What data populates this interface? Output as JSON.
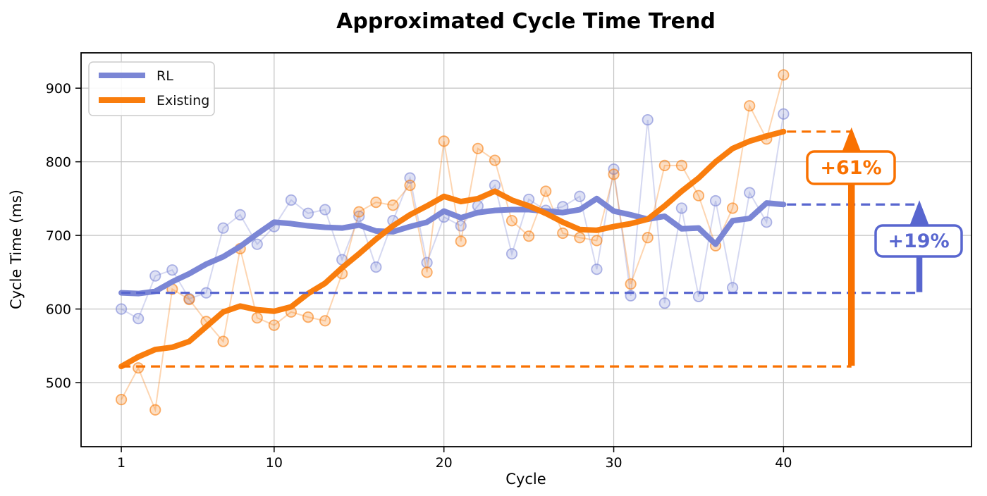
{
  "chart_data": {
    "type": "line",
    "title": "Approximated Cycle Time Trend",
    "xlabel": "Cycle",
    "ylabel": "Cycle Time (ms)",
    "x_ticks": [
      1,
      10,
      20,
      30,
      40
    ],
    "y_ticks": [
      500,
      600,
      700,
      800,
      900
    ],
    "xlim": [
      -1.37,
      51.07
    ],
    "ylim": [
      413,
      948
    ],
    "grid": true,
    "legend_position": "upper left",
    "x": [
      1,
      2,
      3,
      4,
      5,
      6,
      7,
      8,
      9,
      10,
      11,
      12,
      13,
      14,
      15,
      16,
      17,
      18,
      19,
      20,
      21,
      22,
      23,
      24,
      25,
      26,
      27,
      28,
      29,
      30,
      31,
      32,
      33,
      34,
      35,
      36,
      37,
      38,
      39,
      40
    ],
    "series": [
      {
        "name": "RL",
        "color": "#7b86d5",
        "accent": "#5866cf",
        "raw": [
          600,
          587,
          645,
          653,
          614,
          622,
          710,
          728,
          688,
          712,
          748,
          730,
          735,
          667,
          726,
          657,
          720,
          778,
          663,
          725,
          713,
          740,
          768,
          675,
          749,
          734,
          739,
          753,
          654,
          790,
          618,
          857,
          608,
          737,
          617,
          747,
          629,
          758,
          718,
          865
        ],
        "smooth": [
          622,
          621,
          624,
          637,
          648,
          661,
          671,
          685,
          702,
          718,
          716,
          713,
          711,
          710,
          714,
          706,
          705,
          712,
          718,
          733,
          724,
          731,
          734,
          735,
          735,
          733,
          731,
          735,
          750,
          733,
          728,
          722,
          726,
          709,
          710,
          688,
          720,
          723,
          744,
          742
        ]
      },
      {
        "name": "Existing",
        "color": "#f97d0d",
        "accent": "#f97100",
        "raw": [
          477,
          520,
          463,
          627,
          613,
          583,
          556,
          682,
          588,
          578,
          596,
          589,
          584,
          648,
          732,
          745,
          741,
          768,
          650,
          828,
          692,
          818,
          802,
          720,
          699,
          760,
          703,
          697,
          693,
          783,
          634,
          697,
          795,
          795,
          754,
          686,
          737,
          876,
          831,
          918
        ],
        "smooth": [
          522,
          535,
          545,
          548,
          556,
          576,
          596,
          604,
          599,
          597,
          603,
          621,
          635,
          656,
          675,
          695,
          713,
          728,
          740,
          753,
          746,
          750,
          760,
          748,
          740,
          730,
          718,
          708,
          707,
          712,
          716,
          722,
          740,
          760,
          778,
          800,
          818,
          828,
          835,
          841
        ]
      }
    ],
    "reference_lines": [
      {
        "series": "Existing",
        "value": 522,
        "x_start": 1,
        "x_end": 44.0
      },
      {
        "series": "RL",
        "value": 622,
        "x_start": 1,
        "x_end": 48.0
      },
      {
        "series": "Existing",
        "value": 841,
        "x_start": 40.2,
        "x_end": 44.0
      },
      {
        "series": "RL",
        "value": 742,
        "x_start": 40.2,
        "x_end": 48.0
      }
    ],
    "arrows": [
      {
        "x": 44.0,
        "y_from": 522,
        "y_to": 841,
        "label": "+61%",
        "label_y": 792,
        "color": "#f97100"
      },
      {
        "x": 48.0,
        "y_from": 622,
        "y_to": 742,
        "label": "+19%",
        "label_y": 692,
        "color": "#5866cf"
      }
    ]
  }
}
